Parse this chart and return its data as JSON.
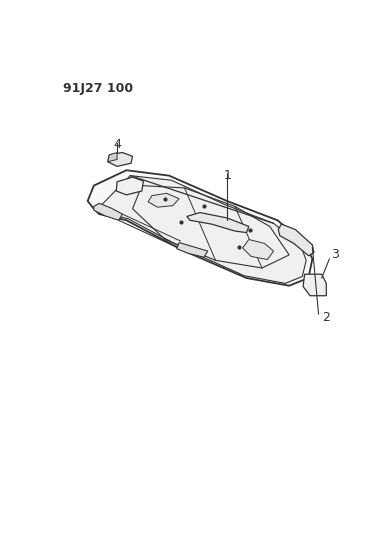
{
  "title_text": "91J27 100",
  "bg_color": "#ffffff",
  "line_color": "#333333",
  "figsize": [
    3.91,
    5.33
  ],
  "dpi": 100
}
